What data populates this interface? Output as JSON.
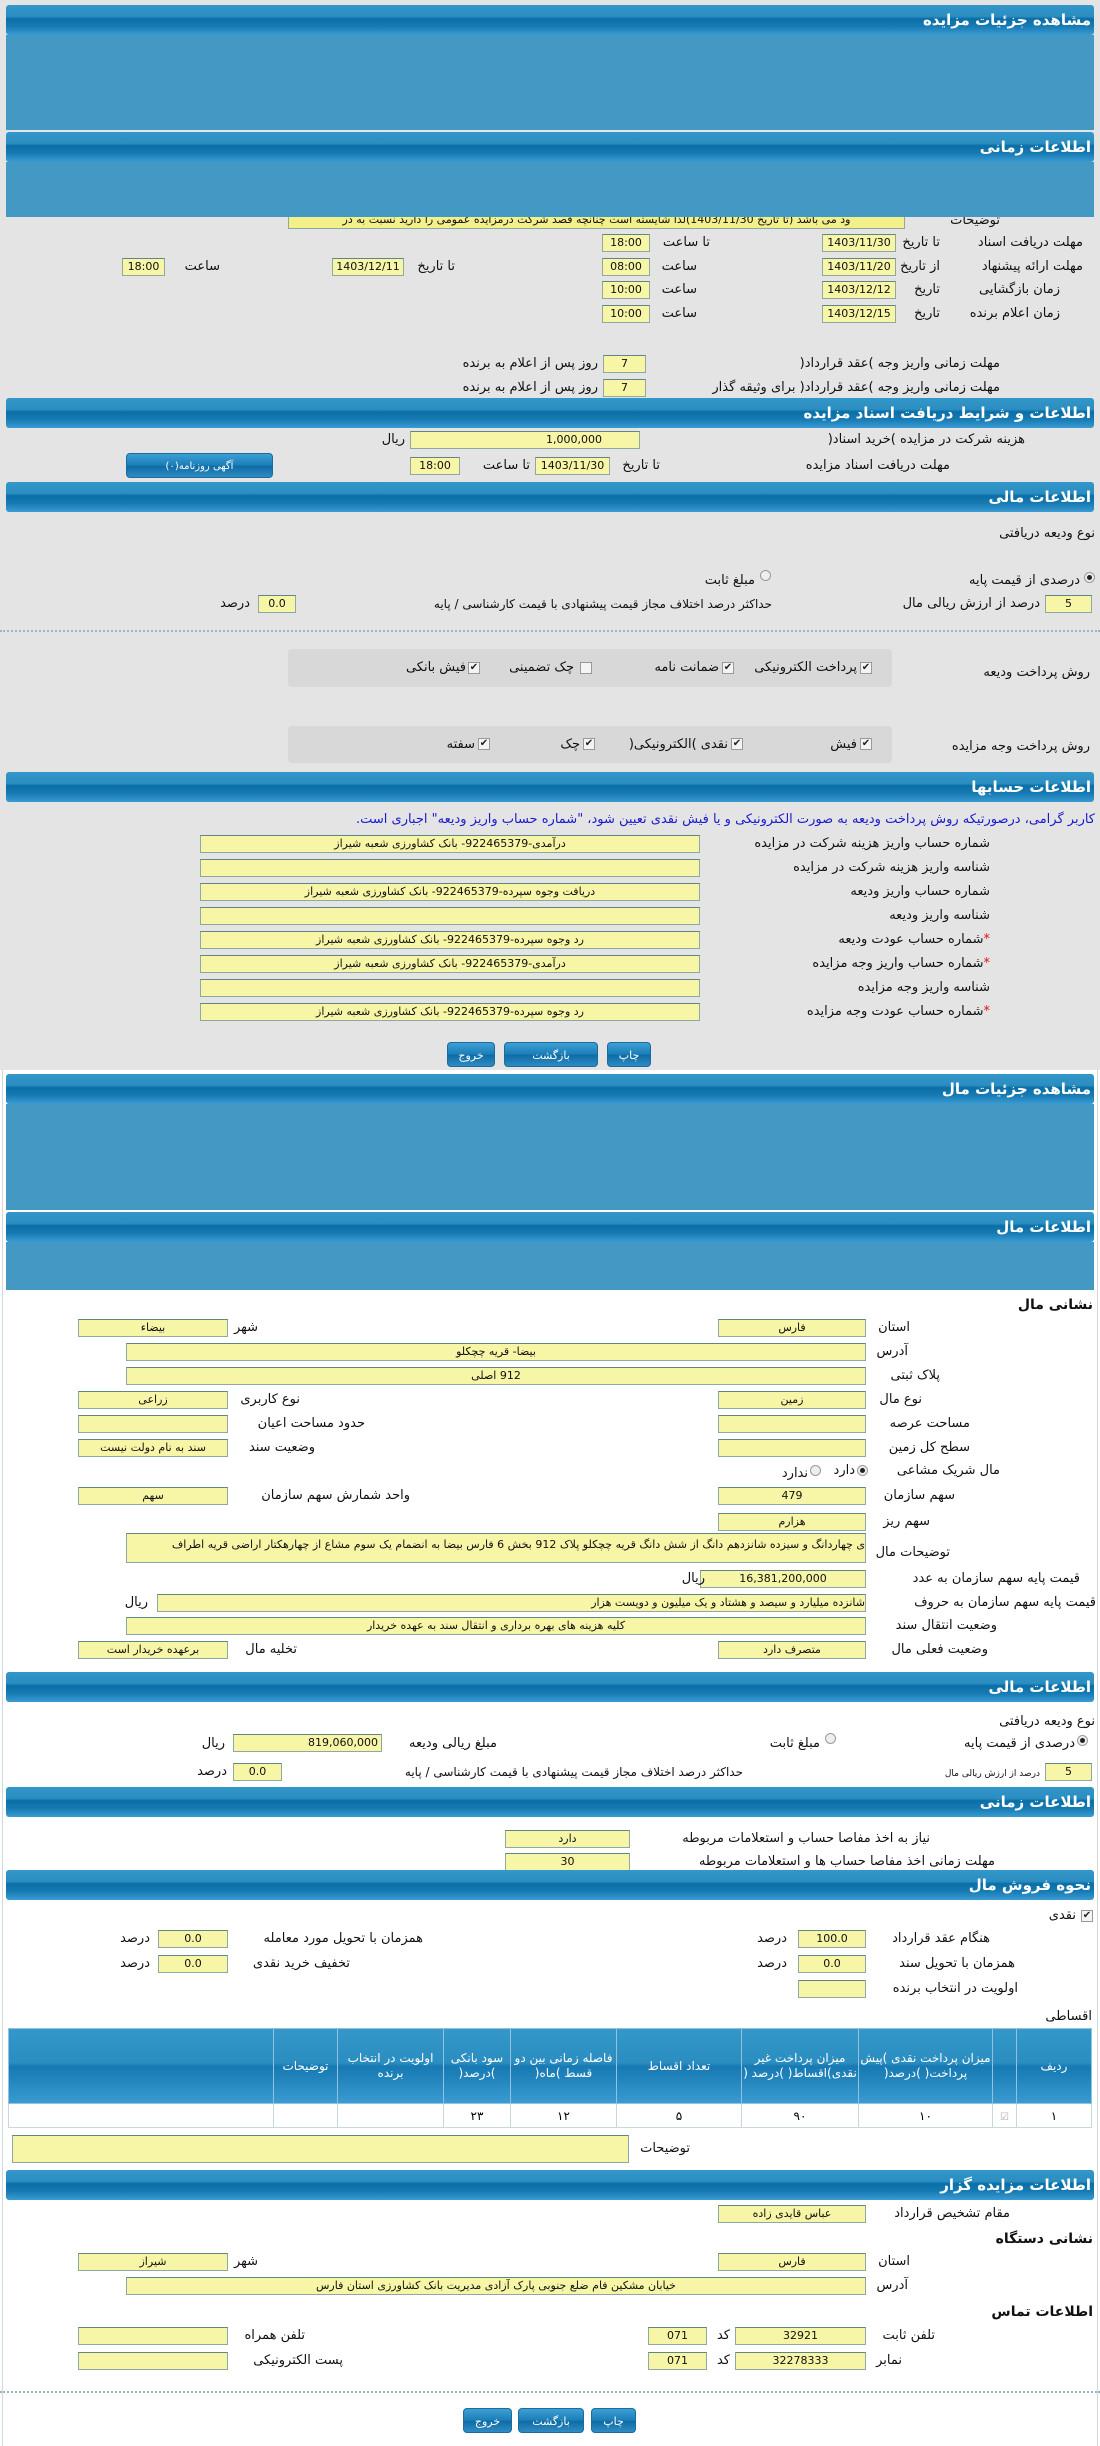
{
  "auction": {
    "header": "مشاهده جزئیات مزایده"
  },
  "time": {
    "header": "اطلاعات زمانی",
    "desc_label": "توضیحات",
    "desc_value": "ود می باشد (تا تاریخ 1403/11/30)لذا شایسته است چنانچه قصد شرکت درمزایده عمومی را دارید نسبت به در",
    "doc_deadline": {
      "label": "مهلت دریافت اسناد",
      "to_date_label": "تا تاریخ",
      "date": "1403/11/30",
      "to_time_label": "تا ساعت",
      "time": "18:00"
    },
    "offer": {
      "label": "مهلت ارائه پیشنهاد",
      "from_date_label": "از تاریخ",
      "from_date": "1403/11/20",
      "from_time_label": "ساعت",
      "from_time": "08:00",
      "to_date_label": "تا تاریخ",
      "to_date": "1403/12/11",
      "to_time_label": "ساعت",
      "to_time": "18:00"
    },
    "opening": {
      "label": "زمان بازگشایی",
      "date_label": "تاریخ",
      "date": "1403/12/12",
      "time_label": "ساعت",
      "time": "10:00"
    },
    "winner": {
      "label": "زمان اعلام برنده",
      "date_label": "تاریخ",
      "date": "1403/12/15",
      "time_label": "ساعت",
      "time": "10:00"
    },
    "pay_contract": {
      "label": "مهلت زمانی واریز وجه )عقد قرارداد(",
      "value": "7",
      "suffix": "روز پس از اعلام به برنده"
    },
    "pay_collateral": {
      "label": "مهلت زمانی واریز وجه )عقد قرارداد( برای وثیقه گذار",
      "value": "7",
      "suffix": "روز پس از اعلام به برنده"
    }
  },
  "docs": {
    "header": "اطلاعات و شرایط دریافت اسناد مزایده",
    "fee_label": "هزینه شرکت در مزایده )خرید اسناد(",
    "fee": "1,000,000",
    "fee_unit": "ریال",
    "deadline_label": "مهلت دریافت اسناد مزایده",
    "to_date_label": "تا تاریخ",
    "date": "1403/11/30",
    "to_time_label": "تا ساعت",
    "time": "18:00",
    "ad_button": "آگهی روزنامه(۰)"
  },
  "finance": {
    "header": "اطلاعات مالی",
    "deposit_type_label": "نوع ودیعه دریافتی",
    "opt_percent": "درصدی از قیمت پایه",
    "opt_fixed": "مبلغ ثابت",
    "percent_value": "5",
    "percent_label": "درصد از ارزش ریالی مال",
    "max_diff_label": "حداکثر درصد اختلاف مجاز قیمت پیشنهادی با قیمت کارشناسی / پایه",
    "max_diff": "0.0",
    "max_diff_unit": "درصد",
    "deposit_methods_label": "روش پرداخت ودیعه",
    "deposit_methods": [
      {
        "label": "پرداخت الکترونیکی",
        "checked": true
      },
      {
        "label": "ضمانت نامه",
        "checked": true
      },
      {
        "label": "چک تضمینی",
        "checked": false
      },
      {
        "label": "فیش بانکی",
        "checked": true
      }
    ],
    "payment_methods_label": "روش پرداخت وجه مزایده",
    "payment_methods": [
      {
        "label": "فیش",
        "checked": true
      },
      {
        "label": "نقدی )الکترونیکی(",
        "checked": true
      },
      {
        "label": "چک",
        "checked": true
      },
      {
        "label": "سفته",
        "checked": true
      }
    ]
  },
  "accounts": {
    "header": "اطلاعات حسابها",
    "notice": "کاربر گرامی، درصورتیکه روش پرداخت ودیعه به صورت الکترونیکی و یا فیش نقدی تعیین شود، \"شماره حساب واریز ودیعه\" اجباری است.",
    "rows": [
      {
        "label": "شماره حساب واریز هزینه شرکت در مزایده",
        "value": "درآمدی-922465379- بانک کشاورزی شعبه شیراز",
        "required": false
      },
      {
        "label": "شناسه واریز هزینه شرکت در مزایده",
        "value": "",
        "required": false
      },
      {
        "label": "شماره حساب واریز ودیعه",
        "value": "دریافت وجوه سپرده-922465379- بانک کشاورزی شعبه شیراز",
        "required": false
      },
      {
        "label": "شناسه واریز ودیعه",
        "value": "",
        "required": false
      },
      {
        "label": "شماره حساب عودت ودیعه",
        "value": "رد وجوه سپرده-922465379- بانک کشاورزی شعبه شیراز",
        "required": true
      },
      {
        "label": "شماره حساب واریز وجه مزایده",
        "value": "درآمدی-922465379- بانک کشاورزی شعبه شیراز",
        "required": true
      },
      {
        "label": "شناسه واریز وجه مزایده",
        "value": "",
        "required": false
      },
      {
        "label": "شماره حساب عودت وجه مزایده",
        "value": "رد وجوه سپرده-922465379- بانک کشاورزی شعبه شیراز",
        "required": true
      }
    ],
    "required_mark": "*"
  },
  "buttons": {
    "print": "چاپ",
    "back": "بازگشت",
    "exit": "خروج"
  },
  "item": {
    "header": "مشاهده جزئیات مال",
    "info_header": "اطلاعات مال",
    "address_title": "نشانی مال",
    "province_label": "استان",
    "province": "فارس",
    "city_label": "شهر",
    "city": "بیضاء",
    "address_label": "آدرس",
    "address": "بیضا- قریه چچکلو",
    "plate_label": "پلاک ثبتی",
    "plate": "912 اصلی",
    "type_label": "نوع مال",
    "type": "زمین",
    "usage_label": "نوع کاربری",
    "usage": "زراعی",
    "area_label": "مساحت عرصه",
    "area": "",
    "building_label": "حدود مساحت اعیان",
    "building": "",
    "land_label": "سطح کل زمین",
    "land": "",
    "deed_label": "وضعیت سند",
    "deed": "سند به نام دولت نیست",
    "shared_label": "مال شریک مشاعی",
    "shared_yes": "دارد",
    "shared_no": "ندارد",
    "share_label": "سهم سازمان",
    "share": "479",
    "share_unit_label": "واحد شمارش سهم سازمان",
    "share_unit": "سهم",
    "subshare_label": "سهم ریز",
    "subshare": "هزارم",
    "desc_label": "توضیحات مال",
    "desc": "ی چهاردانگ و سیزده شانزدهم دانگ از شش دانگ قریه چچکلو پلاک 912 بخش 6 فارس بیضا به انضمام یک سوم مشاع از چهارهکتار اراضی قریه اطراف",
    "price_num_label": "قیمت پایه سهم سازمان به عدد",
    "price_num": "16,381,200,000",
    "price_unit": "ریال",
    "price_words_label": "قیمت پایه سهم سازمان به حروف",
    "price_words": "شانزده میلیارد و سیصد و هشتاد و یک میلیون و دویست هزار",
    "price_words_unit": "ریال",
    "transfer_label": "وضعیت انتقال سند",
    "transfer": "کلیه هزینه های بهره برداری و انتقال سند به عهده خریدار",
    "status_label": "وضعیت فعلی مال",
    "status": "متصرف دارد",
    "evict_label": "تخلیه مال",
    "evict": "برعهده خریدار است"
  },
  "finance2": {
    "header": "اطلاعات مالی",
    "deposit_type_label": "نوع ودیعه دریافتی",
    "opt_percent": "درصدی از قیمت پایه",
    "opt_fixed": "مبلغ ثابت",
    "deposit_amount_label": "مبلغ ریالی ودیعه",
    "deposit_amount": "819,060,000",
    "deposit_unit": "ریال",
    "percent_value": "5",
    "percent_label": "درصد از ارزش ریالی مال",
    "max_diff_label": "حداکثر درصد اختلاف مجاز قیمت پیشنهادی با قیمت کارشناسی / پایه",
    "max_diff": "0.0",
    "max_diff_unit": "درصد"
  },
  "time2": {
    "header": "اطلاعات زمانی",
    "clearance_label": "نیاز به اخذ مفاصا حساب و استعلامات مربوطه",
    "clearance": "دارد",
    "clearance_days_label": "مهلت زمانی اخذ مفاصا حساب ها و استعلامات مربوطه",
    "clearance_days": "30"
  },
  "sale": {
    "header": "نحوه فروش مال",
    "cash_label": "نقدی",
    "cash_checked": true,
    "contract_label": "هنگام عقد قرارداد",
    "contract": "100.0",
    "deed_label": "همزمان با تحویل سند",
    "deed": "0.0",
    "priority_label": "اولویت در انتخاب برنده",
    "priority": "",
    "delivery_label": "همزمان با تحویل مورد معامله",
    "delivery": "0.0",
    "discount_label": "تخفیف خرید نقدی",
    "discount": "0.0",
    "unit": "درصد",
    "installment_label": "اقساطی",
    "table": {
      "headers": [
        "ردیف",
        "",
        "میزان پرداخت نقدی )پیش پرداخت( )درصد(",
        "میزان پرداخت غیر نقدی)اقساط( )درصد (",
        "تعداد اقساط",
        "فاصله زمانی بین دو قسط )ماه(",
        "سود بانکی )درصد(",
        "اولویت در انتخاب برنده",
        "توضیحات",
        ""
      ],
      "rows": [
        [
          "۱",
          "",
          "۱۰",
          "۹۰",
          "۵",
          "۱۲",
          "۲۳",
          "",
          "",
          ""
        ]
      ]
    },
    "notes_label": "توضیحات",
    "notes": ""
  },
  "auctioneer": {
    "header": "اطلاعات مزایده گزار",
    "authority_label": "مقام تشخیص قرارداد",
    "authority": "عباس قایدی زاده",
    "org_address_title": "نشانی دستگاه",
    "province_label": "استان",
    "province": "فارس",
    "city_label": "شهر",
    "city": "شیراز",
    "address_label": "آدرس",
    "address": "خیابان مشکین فام ضلع جنوبی پارک آزادی مدیریت بانک کشاورزی استان فارس",
    "contact_title": "اطلاعات تماس",
    "phone_label": "تلفن ثابت",
    "phone": "32921",
    "code_label": "کد",
    "phone_code": "071",
    "fax_label": "نمابر",
    "fax": "32278333",
    "fax_code": "071",
    "mobile_label": "تلفن همراه",
    "mobile": "",
    "email_label": "پست الکترونیکی",
    "email": ""
  }
}
